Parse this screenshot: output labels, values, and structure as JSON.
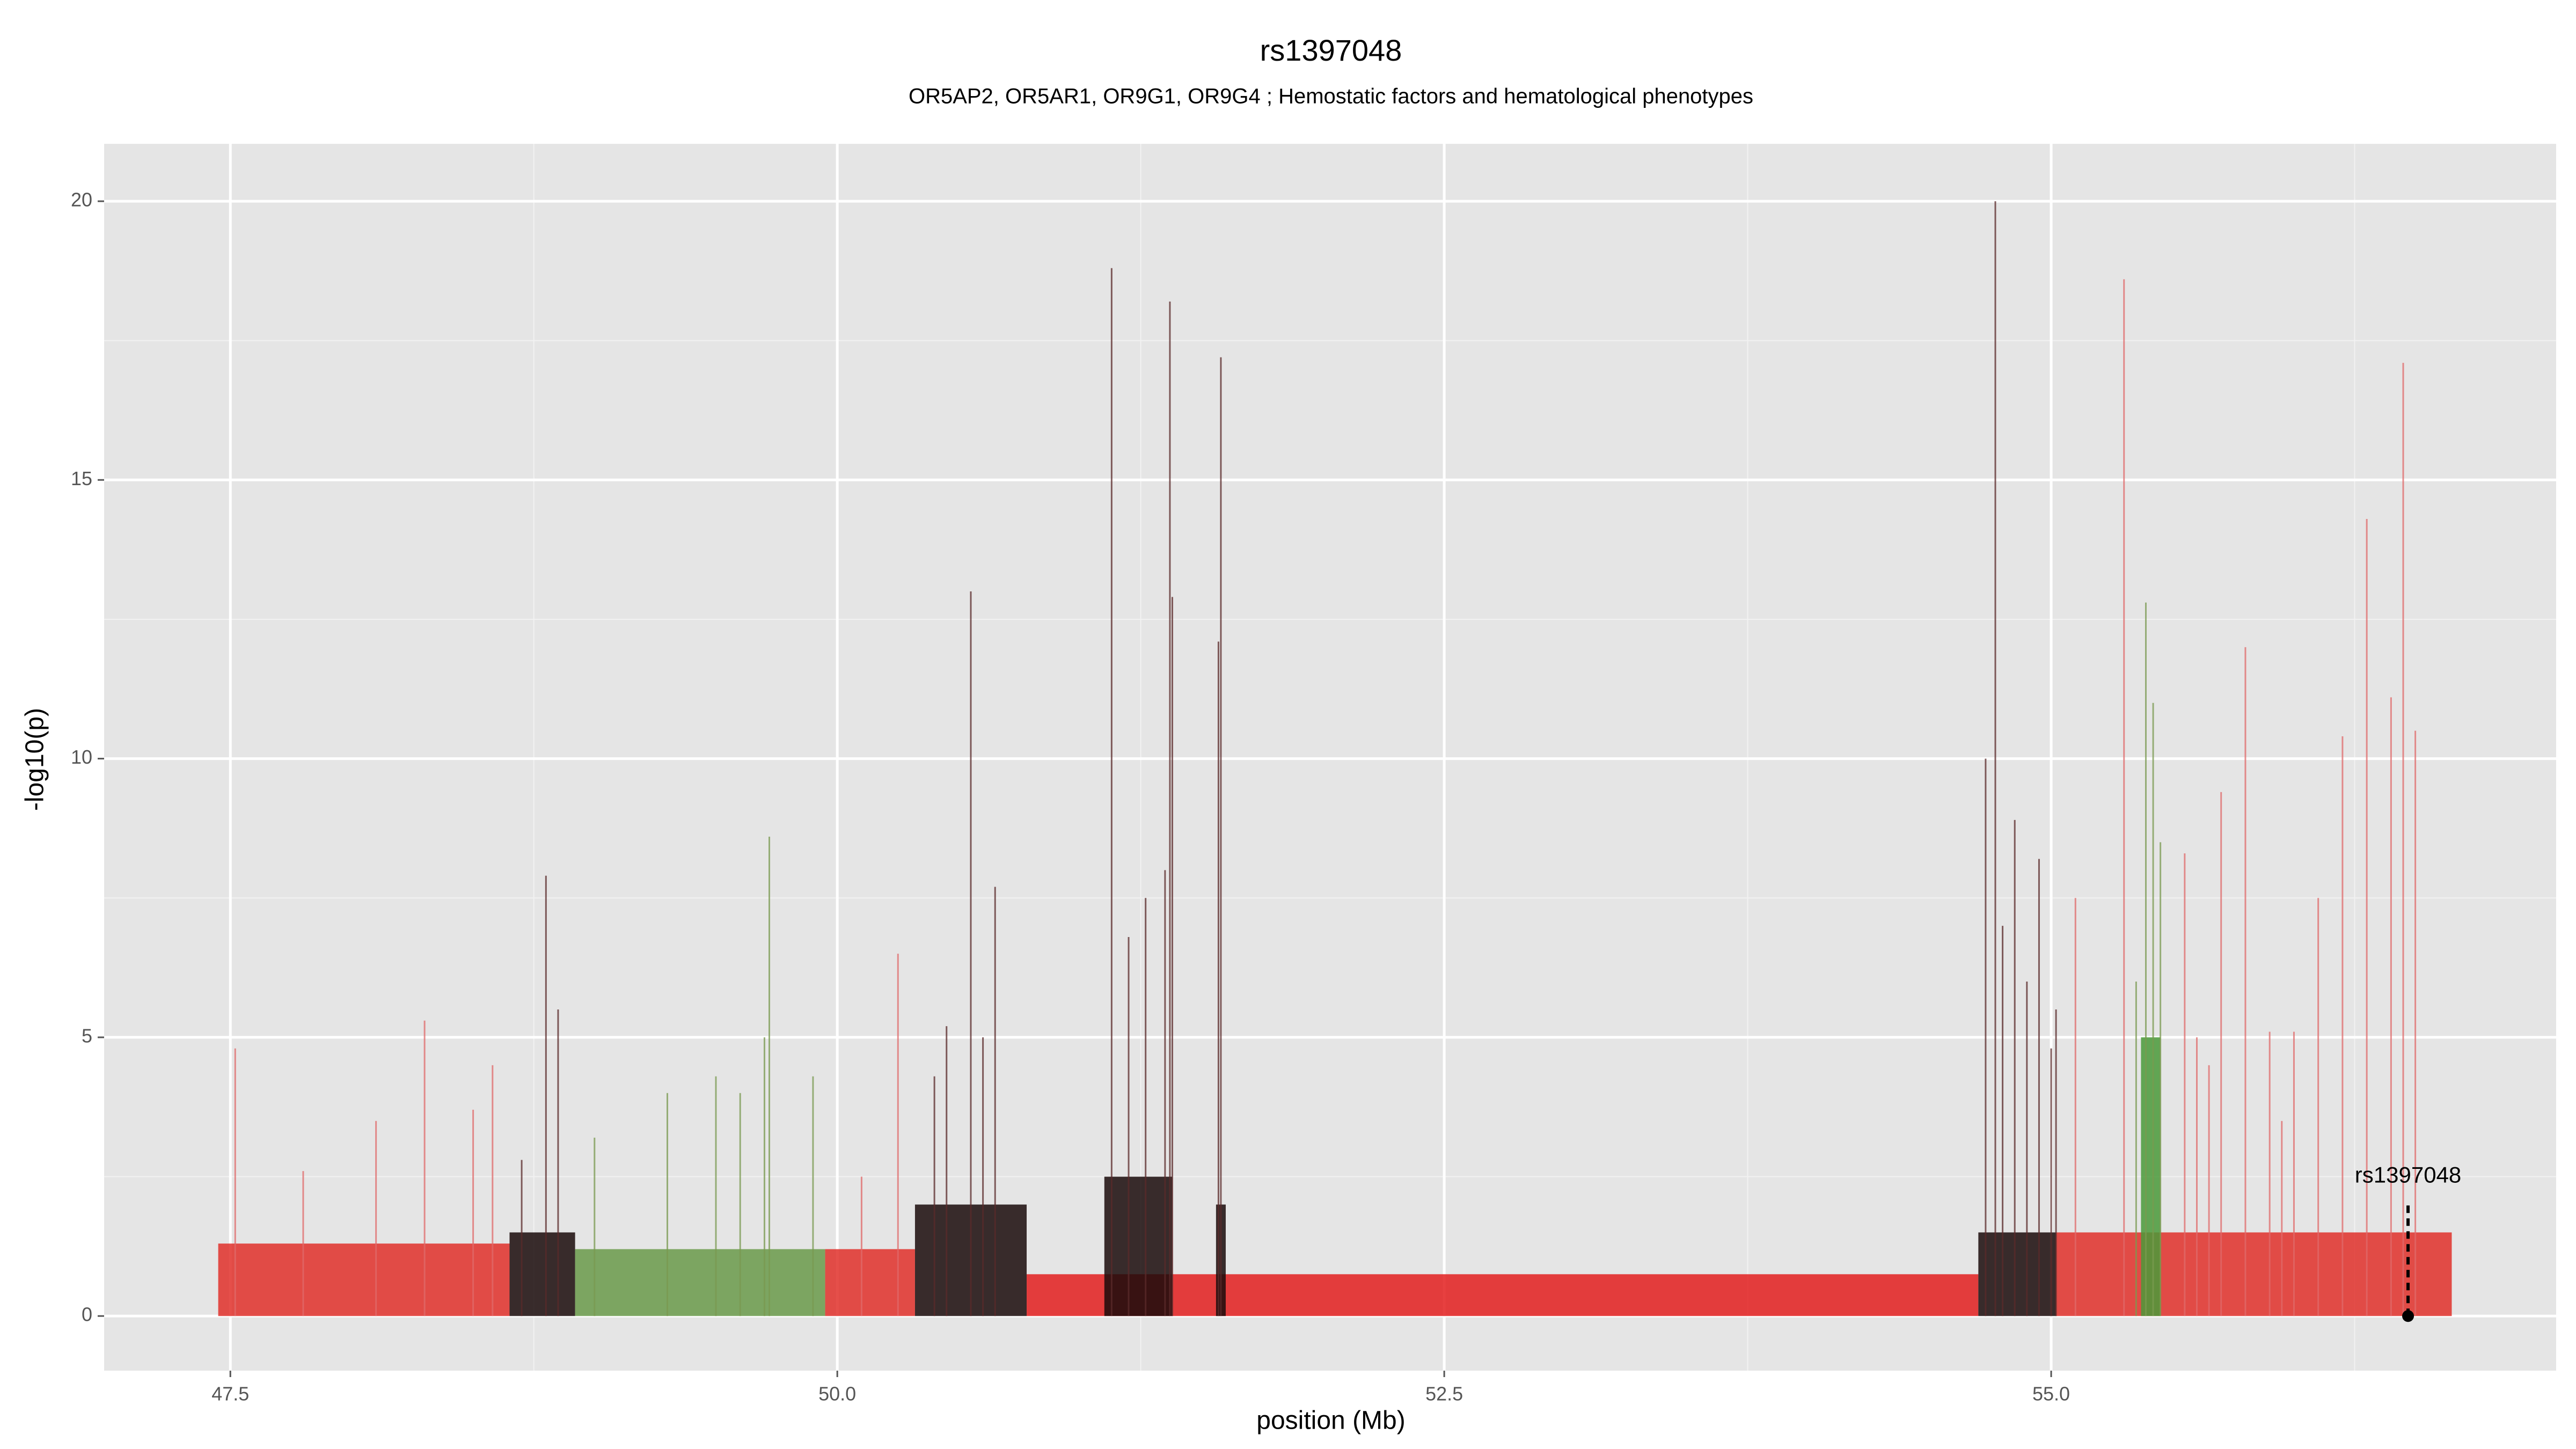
{
  "chart_data": {
    "type": "manhattan",
    "title": "rs1397048",
    "subtitle": "OR5AP2, OR5AR1, OR9G1, OR9G4 ; Hemostatic factors and hematological phenotypes",
    "x_label": "position (Mb)",
    "y_label": "-log10(p)",
    "xlim": [
      46.98,
      57.08
    ],
    "ylim": [
      -0.98,
      21.03
    ],
    "xticks": [
      47.5,
      {
        "value": 50,
        "label": "50.0"
      },
      52.5,
      {
        "value": 55,
        "label": "55.0"
      }
    ],
    "yticks": [
      0,
      5,
      10,
      15,
      20
    ],
    "x_minor_ticks": [
      48.75,
      51.25,
      53.75,
      56.25
    ],
    "y_minor_ticks": [
      2.5,
      7.5,
      12.5,
      17.5
    ],
    "grid": true,
    "blocks": [
      {
        "x0": 47.45,
        "x1": 48.65,
        "height": 1.3,
        "color": "#e0302a"
      },
      {
        "x0": 48.65,
        "x1": 48.92,
        "height": 1.5,
        "color": "#1a0a0a"
      },
      {
        "x0": 48.92,
        "x1": 49.95,
        "height": 1.2,
        "color": "#6a9a4a"
      },
      {
        "x0": 49.95,
        "x1": 50.32,
        "height": 1.2,
        "color": "#e0302a"
      },
      {
        "x0": 50.32,
        "x1": 50.78,
        "height": 2.0,
        "color": "#1a0a0a"
      },
      {
        "x0": 50.78,
        "x1": 54.7,
        "height": 0.75,
        "color": "#e31f1f"
      },
      {
        "x0": 51.1,
        "x1": 51.38,
        "height": 2.5,
        "color": "#1a0a0a"
      },
      {
        "x0": 51.56,
        "x1": 51.6,
        "height": 2.0,
        "color": "#1a0a0a"
      },
      {
        "x0": 54.7,
        "x1": 55.02,
        "height": 1.5,
        "color": "#1a0a0a"
      },
      {
        "x0": 55.02,
        "x1": 56.65,
        "height": 1.5,
        "color": "#e0302a"
      },
      {
        "x0": 55.37,
        "x1": 55.45,
        "height": 5.0,
        "color": "#4a9a3a"
      }
    ],
    "series": [
      {
        "name": "red",
        "color": "#e06a6a",
        "x": [
          47.52,
          47.8,
          48.1,
          48.3,
          48.5,
          48.58,
          50.1,
          50.25,
          55.1,
          55.3,
          55.55,
          55.6,
          55.65,
          55.7,
          55.8,
          55.9,
          55.95,
          56.0,
          56.1,
          56.2,
          56.3,
          56.4,
          56.45,
          56.5
        ],
        "values": [
          4.8,
          2.6,
          3.5,
          5.3,
          3.7,
          4.5,
          2.5,
          6.5,
          7.5,
          18.6,
          8.3,
          5,
          4.5,
          9.4,
          12,
          5.1,
          3.5,
          5.1,
          7.5,
          10.4,
          14.3,
          11.1,
          17.1,
          10.5
        ]
      },
      {
        "name": "dark",
        "color": "#5a2a2a",
        "x": [
          48.7,
          48.8,
          48.85,
          50.4,
          50.45,
          50.55,
          50.6,
          50.65,
          51.13,
          51.2,
          51.27,
          51.35,
          51.37,
          51.38,
          51.57,
          51.58,
          54.73,
          54.77,
          54.8,
          54.85,
          54.9,
          54.95,
          55.0,
          55.02
        ],
        "values": [
          2.8,
          7.9,
          5.5,
          4.3,
          5.2,
          13,
          5,
          7.7,
          18.8,
          6.8,
          7.5,
          8,
          18.2,
          12.9,
          12.1,
          17.2,
          10,
          20,
          7,
          8.9,
          6,
          8.2,
          4.8,
          5.5
        ]
      },
      {
        "name": "green",
        "color": "#7a9a50",
        "x": [
          49.0,
          49.3,
          49.5,
          49.6,
          49.7,
          49.72,
          49.9,
          55.35,
          55.39,
          55.42,
          55.45
        ],
        "values": [
          3.2,
          4,
          4.3,
          4,
          5,
          8.6,
          4.3,
          6,
          12.8,
          11,
          8.5
        ]
      }
    ],
    "annotation": {
      "text": "rs1397048",
      "x": 56.47,
      "y": 0
    }
  }
}
